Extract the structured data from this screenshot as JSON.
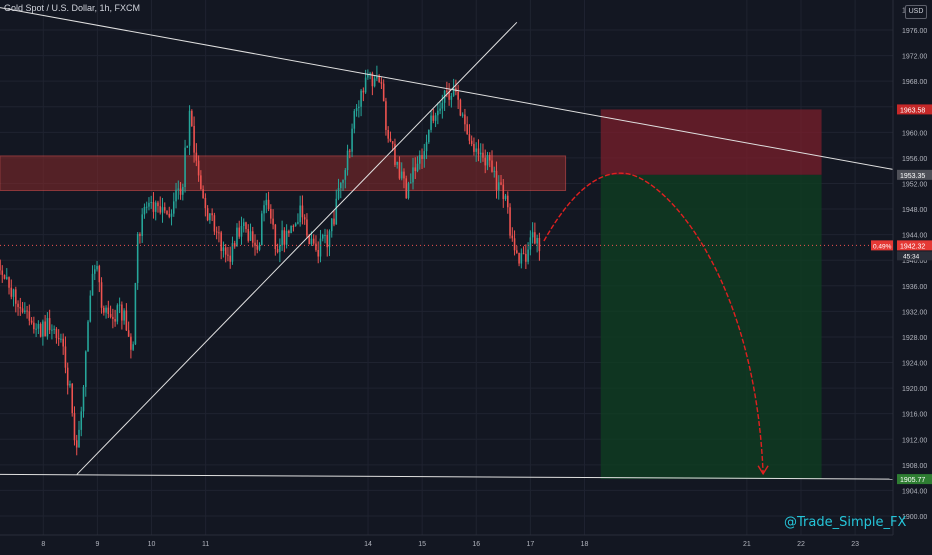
{
  "header": {
    "symbol_title": "Gold Spot / U.S. Dollar, 1h, FXCM",
    "currency": "USD"
  },
  "watermark": "@Trade_Simple_FX",
  "colors": {
    "background": "#131722",
    "grid": "#1f2330",
    "up": "#26a69a",
    "down": "#ef5350",
    "text": "#b2b5be",
    "stop_zone": "#7a1f2b",
    "target_zone": "#0f3d22",
    "resistance_zone": "#8a2a2a",
    "projection": "#e02020",
    "trendline": "#e0e0e0"
  },
  "chart_data": {
    "type": "candlestick",
    "title": "Gold Spot / U.S. Dollar, 1h, FXCM",
    "instrument": "XAUUSD",
    "timeframe": "1h",
    "ylim": [
      1897,
      1980
    ],
    "grid": true,
    "x_ticks": [
      {
        "t": 8,
        "label": "8"
      },
      {
        "t": 9,
        "label": "9"
      },
      {
        "t": 10,
        "label": "10"
      },
      {
        "t": 11,
        "label": "11"
      },
      {
        "t": 14,
        "label": "14"
      },
      {
        "t": 15,
        "label": "15"
      },
      {
        "t": 16,
        "label": "16"
      },
      {
        "t": 17,
        "label": "17"
      },
      {
        "t": 18,
        "label": "18"
      },
      {
        "t": 21,
        "label": "21"
      },
      {
        "t": 22,
        "label": "22"
      },
      {
        "t": 23,
        "label": "23"
      }
    ],
    "y_ticks": [
      1900,
      1904,
      1908,
      1912,
      1916,
      1920,
      1924,
      1928,
      1932,
      1936,
      1940,
      1944,
      1948,
      1952,
      1956,
      1960,
      1964,
      1968,
      1972,
      1976
    ],
    "y_tick_labels": [
      "1900.00",
      "1904.00",
      "1908.00",
      "1912.00",
      "1916.00",
      "1920.00",
      "1924.00",
      "1928.00",
      "1932.00",
      "1936.00",
      "1940.00",
      "1944.00",
      "1948.00",
      "1952.00",
      "1956.00",
      "1960.00",
      "1964.00",
      "1968.00",
      "1972.00",
      "1976.00"
    ],
    "top_partial_label": "1980.00",
    "x_range": [
      7.2,
      23.7
    ],
    "start_t": 7.2,
    "bar_interval": 0.0417,
    "anchor_points": [
      [
        7.2,
        1940
      ],
      [
        7.35,
        1935
      ],
      [
        7.6,
        1933
      ],
      [
        7.9,
        1929
      ],
      [
        8.15,
        1930
      ],
      [
        8.35,
        1926
      ],
      [
        8.5,
        1919
      ],
      [
        8.6,
        1908
      ],
      [
        8.7,
        1916
      ],
      [
        8.8,
        1928
      ],
      [
        8.95,
        1940
      ],
      [
        9.1,
        1933
      ],
      [
        9.25,
        1931
      ],
      [
        9.45,
        1932
      ],
      [
        9.65,
        1926
      ],
      [
        9.75,
        1944
      ],
      [
        9.9,
        1949
      ],
      [
        10.15,
        1947
      ],
      [
        10.35,
        1948
      ],
      [
        10.55,
        1951
      ],
      [
        10.7,
        1962
      ],
      [
        10.9,
        1951
      ],
      [
        11.1,
        1946
      ],
      [
        11.4,
        1940
      ],
      [
        11.7,
        1947
      ],
      [
        11.95,
        1940
      ],
      [
        12.1,
        1950
      ],
      [
        12.3,
        1942
      ],
      [
        12.55,
        1945
      ],
      [
        12.75,
        1948
      ],
      [
        13.0,
        1941
      ],
      [
        13.3,
        1944
      ],
      [
        13.55,
        1954
      ],
      [
        13.8,
        1964
      ],
      [
        14.0,
        1968
      ],
      [
        14.2,
        1969
      ],
      [
        14.35,
        1960
      ],
      [
        14.55,
        1954
      ],
      [
        14.7,
        1951
      ],
      [
        14.85,
        1955
      ],
      [
        15.05,
        1958
      ],
      [
        15.25,
        1964
      ],
      [
        15.45,
        1966
      ],
      [
        15.6,
        1966
      ],
      [
        15.75,
        1962
      ],
      [
        15.95,
        1958
      ],
      [
        16.3,
        1954
      ],
      [
        16.55,
        1949
      ],
      [
        16.7,
        1941
      ],
      [
        16.85,
        1940
      ],
      [
        17.05,
        1944
      ],
      [
        17.2,
        1942.3
      ]
    ],
    "seed": 31,
    "current_price": 1942.32,
    "current_price_label": "1942.32",
    "current_change_label": "0.49%",
    "countdown_label": "45:34",
    "drawings": {
      "descending_trendline": {
        "from": [
          7.2,
          1979.5
        ],
        "to": [
          23.7,
          1954.2
        ]
      },
      "ascending_trendline": {
        "from": [
          8.62,
          1906.5
        ],
        "to": [
          16.75,
          1977.2
        ]
      },
      "support_line": {
        "from": [
          7.2,
          1906.5
        ],
        "to": [
          23.7,
          1905.77
        ]
      },
      "resistance_zone": {
        "t_from": 7.2,
        "t_to": 17.65,
        "top": 1956.3,
        "bottom": 1950.9
      },
      "risk_reward": {
        "t_from": 18.3,
        "t_to": 22.38,
        "stop": 1963.58,
        "entry": 1953.35,
        "target": 1905.77
      },
      "projection": {
        "start": [
          17.25,
          1943
        ],
        "peak": [
          18.7,
          1953.6
        ],
        "end": [
          21.3,
          1906.6
        ]
      }
    },
    "price_labels": [
      {
        "value": 1963.58,
        "label": "1963.58",
        "kind": "stop"
      },
      {
        "value": 1953.35,
        "label": "1953.35",
        "kind": "entry"
      },
      {
        "value": 1905.77,
        "label": "1905.77",
        "kind": "target"
      }
    ]
  }
}
